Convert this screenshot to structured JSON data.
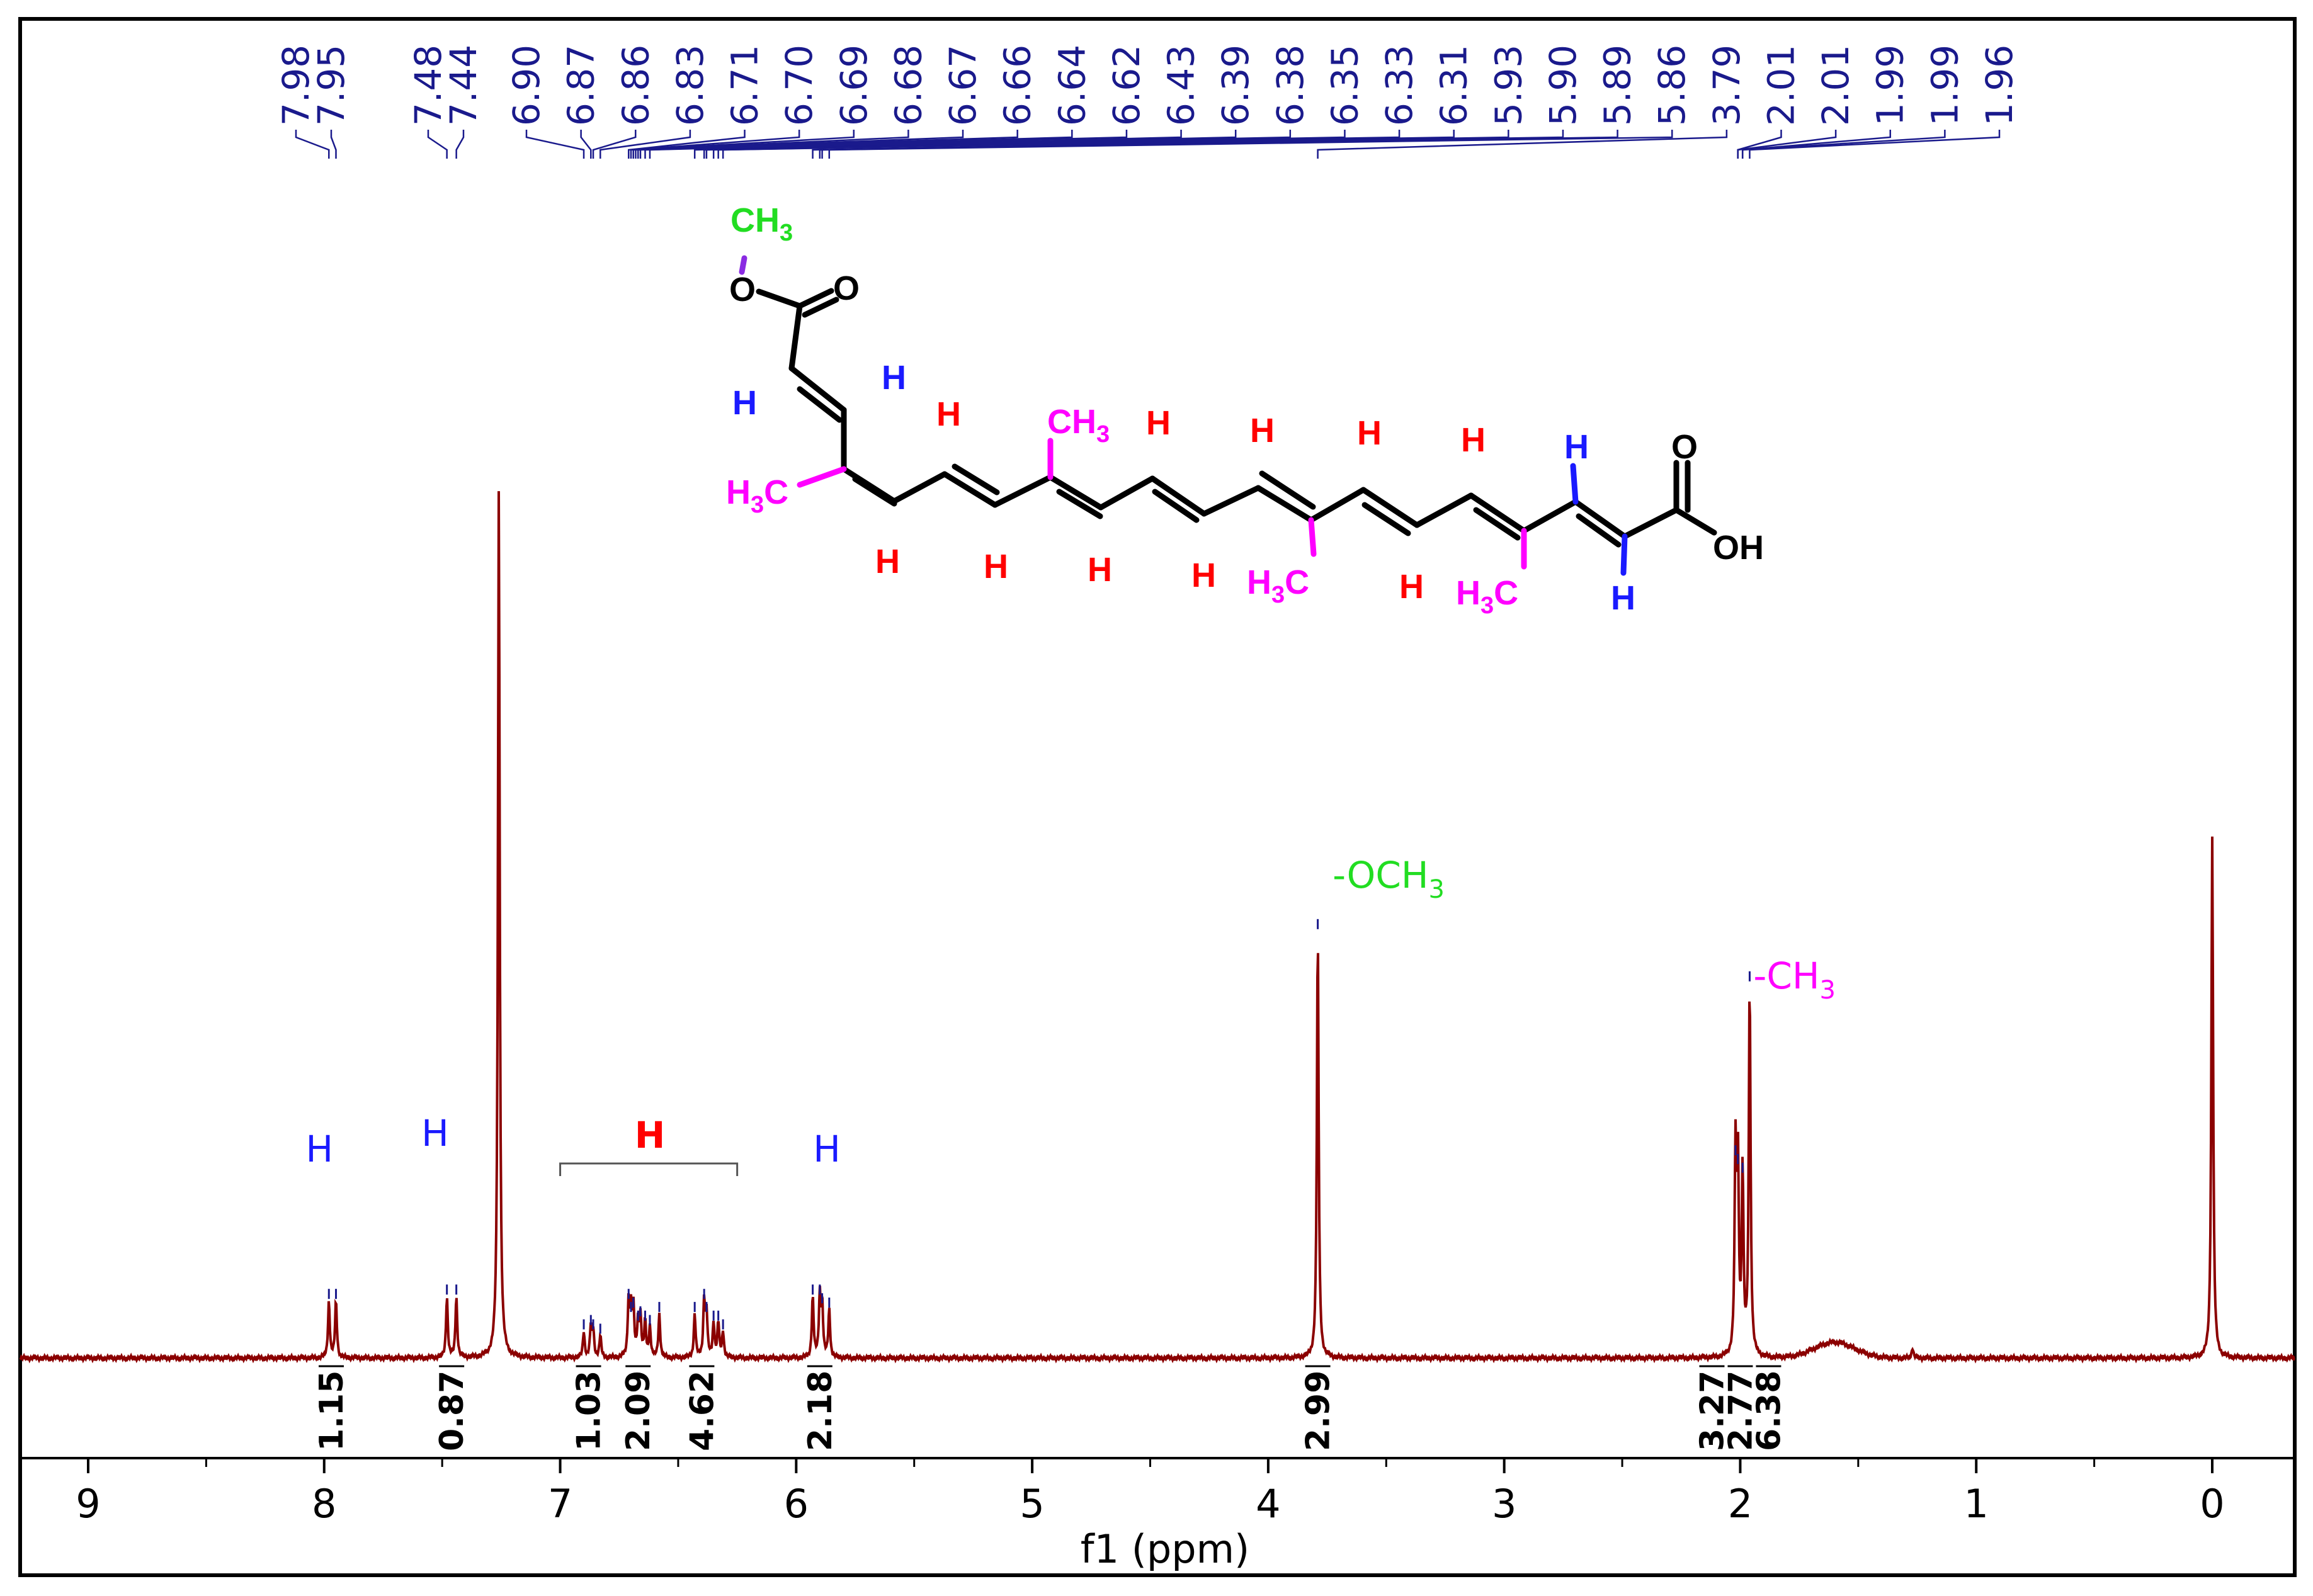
{
  "chart_data": {
    "type": "line",
    "xlabel": "f1 (ppm)",
    "xlim": [
      9.5,
      -0.3
    ],
    "x_reversed": true,
    "x_ticks": [
      9,
      8,
      7,
      6,
      5,
      4,
      3,
      2,
      1,
      0
    ],
    "grid": false,
    "peak_labels": [
      "7.98",
      "7.95",
      "7.48",
      "7.44",
      "6.90",
      "6.87",
      "6.86",
      "6.83",
      "6.71",
      "6.70",
      "6.69",
      "6.68",
      "6.67",
      "6.66",
      "6.64",
      "6.62",
      "6.43",
      "6.39",
      "6.38",
      "6.35",
      "6.33",
      "6.31",
      "5.93",
      "5.90",
      "5.89",
      "5.86",
      "3.79",
      "2.01",
      "2.01",
      "1.99",
      "1.99",
      "1.96"
    ],
    "peaks": [
      {
        "ppm": 7.98,
        "height": 0.065
      },
      {
        "ppm": 7.95,
        "height": 0.065
      },
      {
        "ppm": 7.48,
        "height": 0.07
      },
      {
        "ppm": 7.44,
        "height": 0.07
      },
      {
        "ppm": 7.26,
        "height": 1.0
      },
      {
        "ppm": 6.9,
        "height": 0.03
      },
      {
        "ppm": 6.87,
        "height": 0.035
      },
      {
        "ppm": 6.86,
        "height": 0.03
      },
      {
        "ppm": 6.83,
        "height": 0.025
      },
      {
        "ppm": 6.71,
        "height": 0.065
      },
      {
        "ppm": 6.7,
        "height": 0.05
      },
      {
        "ppm": 6.69,
        "height": 0.055
      },
      {
        "ppm": 6.67,
        "height": 0.04
      },
      {
        "ppm": 6.66,
        "height": 0.045
      },
      {
        "ppm": 6.64,
        "height": 0.04
      },
      {
        "ppm": 6.62,
        "height": 0.035
      },
      {
        "ppm": 6.58,
        "height": 0.05
      },
      {
        "ppm": 6.43,
        "height": 0.05
      },
      {
        "ppm": 6.39,
        "height": 0.065
      },
      {
        "ppm": 6.38,
        "height": 0.05
      },
      {
        "ppm": 6.35,
        "height": 0.04
      },
      {
        "ppm": 6.33,
        "height": 0.04
      },
      {
        "ppm": 6.31,
        "height": 0.03
      },
      {
        "ppm": 5.93,
        "height": 0.07
      },
      {
        "ppm": 5.9,
        "height": 0.07
      },
      {
        "ppm": 5.89,
        "height": 0.06
      },
      {
        "ppm": 5.86,
        "height": 0.055
      },
      {
        "ppm": 3.79,
        "height": 0.49
      },
      {
        "ppm": 2.02,
        "height": 0.23
      },
      {
        "ppm": 2.01,
        "height": 0.22
      },
      {
        "ppm": 1.99,
        "height": 0.21
      },
      {
        "ppm": 1.96,
        "height": 0.43
      },
      {
        "ppm": 1.27,
        "height": 0.012
      },
      {
        "ppm": 0.0,
        "height": 0.6
      }
    ],
    "broad_hump": {
      "ppm": 1.6,
      "height": 0.018
    },
    "integrals": [
      {
        "ppm": 7.97,
        "value": "1.15"
      },
      {
        "ppm": 7.46,
        "value": "0.87"
      },
      {
        "ppm": 6.88,
        "value": "1.03"
      },
      {
        "ppm": 6.67,
        "value": "2.09"
      },
      {
        "ppm": 6.4,
        "value": "4.62"
      },
      {
        "ppm": 5.9,
        "value": "2.18"
      },
      {
        "ppm": 3.79,
        "value": "2.99"
      },
      {
        "ppm": 2.12,
        "value": "3.27"
      },
      {
        "ppm": 2.0,
        "value": "2.77"
      },
      {
        "ppm": 1.88,
        "value": "6.38"
      }
    ],
    "annotations": [
      {
        "ppm": 8.02,
        "text": "H",
        "color": "#1a1aff"
      },
      {
        "ppm": 7.53,
        "text": "H",
        "color": "#1a1aff"
      },
      {
        "ppm": 5.87,
        "text": "H",
        "color": "#1a1aff"
      },
      {
        "ppm": 6.62,
        "text": "H",
        "color": "#ff0000"
      },
      {
        "ppm": 3.49,
        "text": "-OCH",
        "sub": "3",
        "color": "#22dd22"
      },
      {
        "ppm": 1.77,
        "text": "-CH",
        "sub": "3",
        "color": "#ff00ff"
      }
    ],
    "bracket_range": [
      7.0,
      6.25
    ]
  },
  "structure": {
    "labels": {
      "o": "O",
      "oh": "OH",
      "h": "H",
      "ch3": "CH",
      "h3c_h": "H",
      "h3c_c": "C",
      "sub3": "3"
    },
    "colors": {
      "bond": "#000000",
      "methoxy": "#22dd22",
      "methyl": "#ff00ff",
      "chain_h": "#ff0000",
      "terminal_h": "#1a1aff",
      "o_link": "#8a2be2"
    }
  },
  "colors": {
    "spectrum": "#8b0000",
    "peak_label": "#1a1a8c",
    "frame": "#000000"
  }
}
